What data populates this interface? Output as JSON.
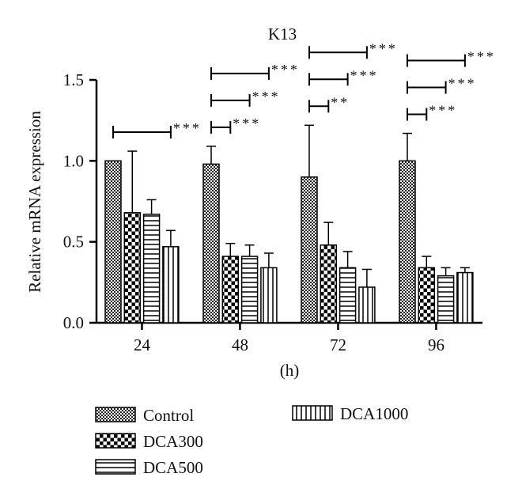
{
  "chart_data": {
    "type": "bar",
    "title": "K13",
    "xlabel": "(h)",
    "ylabel": "Relative mRNA expression",
    "categories": [
      "24",
      "48",
      "72",
      "96"
    ],
    "ylim": [
      0,
      1.5
    ],
    "yticks": [
      "0.0",
      "0.5",
      "1.0",
      "1.5"
    ],
    "grid": false,
    "legend_position": "bottom",
    "series": [
      {
        "name": "Control",
        "pattern": "checker-fine",
        "values": [
          1.0,
          0.98,
          0.9,
          1.0
        ],
        "errors": [
          0.0,
          0.11,
          0.32,
          0.17
        ]
      },
      {
        "name": "DCA300",
        "pattern": "checker-coarse",
        "values": [
          0.68,
          0.41,
          0.48,
          0.34
        ],
        "errors": [
          0.38,
          0.08,
          0.14,
          0.07
        ]
      },
      {
        "name": "DCA500",
        "pattern": "horizontal-lines",
        "values": [
          0.67,
          0.41,
          0.34,
          0.29
        ],
        "errors": [
          0.09,
          0.07,
          0.1,
          0.05
        ]
      },
      {
        "name": "DCA1000",
        "pattern": "vertical-lines",
        "values": [
          0.47,
          0.34,
          0.22,
          0.31
        ],
        "errors": [
          0.1,
          0.09,
          0.11,
          0.03
        ]
      }
    ],
    "annotations": [
      {
        "category": "24",
        "compare": [
          "Control",
          "DCA1000"
        ],
        "label": "***"
      },
      {
        "category": "48",
        "compare": [
          "Control",
          "DCA300"
        ],
        "label": "***"
      },
      {
        "category": "48",
        "compare": [
          "Control",
          "DCA500"
        ],
        "label": "***"
      },
      {
        "category": "48",
        "compare": [
          "Control",
          "DCA1000"
        ],
        "label": "***"
      },
      {
        "category": "72",
        "compare": [
          "Control",
          "DCA300"
        ],
        "label": "**"
      },
      {
        "category": "72",
        "compare": [
          "Control",
          "DCA500"
        ],
        "label": "***"
      },
      {
        "category": "72",
        "compare": [
          "Control",
          "DCA1000"
        ],
        "label": "***"
      },
      {
        "category": "96",
        "compare": [
          "Control",
          "DCA300"
        ],
        "label": "***"
      },
      {
        "category": "96",
        "compare": [
          "Control",
          "DCA500"
        ],
        "label": "***"
      },
      {
        "category": "96",
        "compare": [
          "Control",
          "DCA1000"
        ],
        "label": "***"
      }
    ]
  }
}
